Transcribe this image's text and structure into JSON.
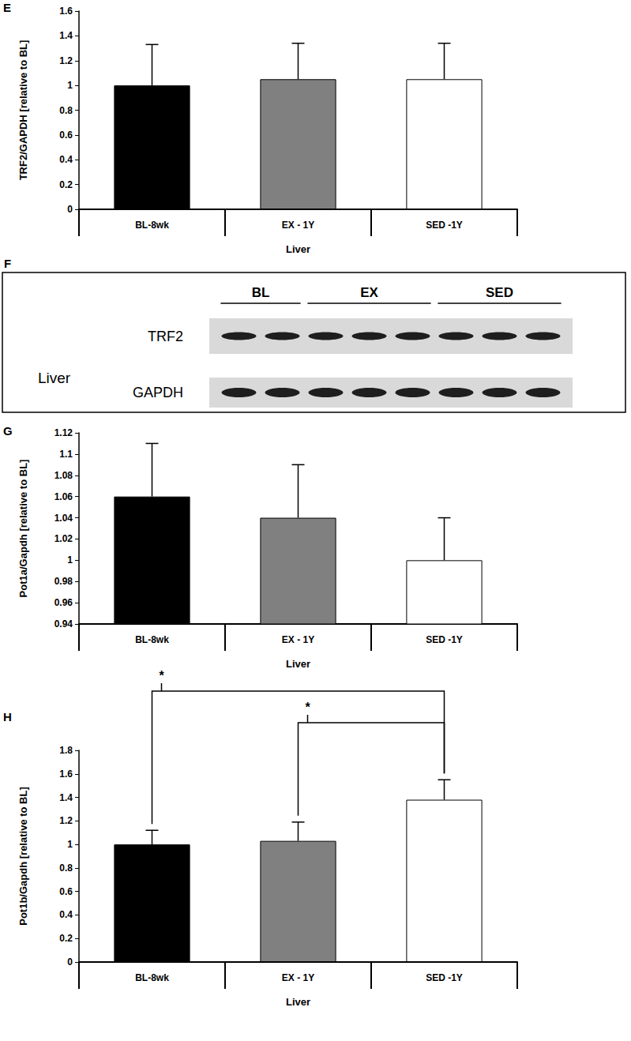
{
  "chart_data": [
    {
      "type": "bar",
      "panel_label": "E",
      "categories": [
        "BL-8wk",
        "EX - 1Y",
        "SED -1Y"
      ],
      "values": [
        1.0,
        1.05,
        1.05
      ],
      "errors": [
        0.33,
        0.29,
        0.29
      ],
      "colors": [
        "#000000",
        "#808080",
        "#ffffff"
      ],
      "x_label": "Liver",
      "y_label": "TRF2/GAPDH [relative to BL]",
      "ylim": [
        0,
        1.6
      ],
      "yticks": [
        0,
        0.2,
        0.4,
        0.6,
        0.8,
        1,
        1.2,
        1.4,
        1.6
      ],
      "grid": false
    },
    {
      "type": "bar",
      "panel_label": "G",
      "categories": [
        "BL-8wk",
        "EX - 1Y",
        "SED -1Y"
      ],
      "values": [
        1.06,
        1.04,
        1.0
      ],
      "errors": [
        0.05,
        0.05,
        0.04
      ],
      "colors": [
        "#000000",
        "#808080",
        "#ffffff"
      ],
      "x_label": "Liver",
      "y_label": "Pot1a/Gapdh [relative to BL]",
      "ylim": [
        0.94,
        1.12
      ],
      "yticks": [
        0.94,
        0.96,
        0.98,
        1,
        1.02,
        1.04,
        1.06,
        1.08,
        1.1,
        1.12
      ],
      "grid": false
    },
    {
      "type": "bar",
      "panel_label": "H",
      "categories": [
        "BL-8wk",
        "EX - 1Y",
        "SED -1Y"
      ],
      "values": [
        1.0,
        1.03,
        1.38
      ],
      "errors": [
        0.12,
        0.16,
        0.17
      ],
      "colors": [
        "#000000",
        "#808080",
        "#ffffff"
      ],
      "x_label": "Liver",
      "y_label": "Pot1b/Gapdh [relative to BL]",
      "ylim": [
        0,
        1.8
      ],
      "yticks": [
        0,
        0.2,
        0.4,
        0.6,
        0.8,
        1,
        1.2,
        1.4,
        1.6,
        1.8
      ],
      "grid": false,
      "annotations": [
        {
          "from": "BL-8wk",
          "to": "SED -1Y",
          "text": "*"
        },
        {
          "from": "EX - 1Y",
          "to": "SED -1Y",
          "text": "*"
        }
      ]
    }
  ],
  "blot": {
    "panel_label": "F",
    "tissue": "Liver",
    "groups": [
      {
        "label": "BL",
        "lanes": 2
      },
      {
        "label": "EX",
        "lanes": 3
      },
      {
        "label": "SED",
        "lanes": 3
      }
    ],
    "rows": [
      "TRF2",
      "GAPDH"
    ]
  }
}
